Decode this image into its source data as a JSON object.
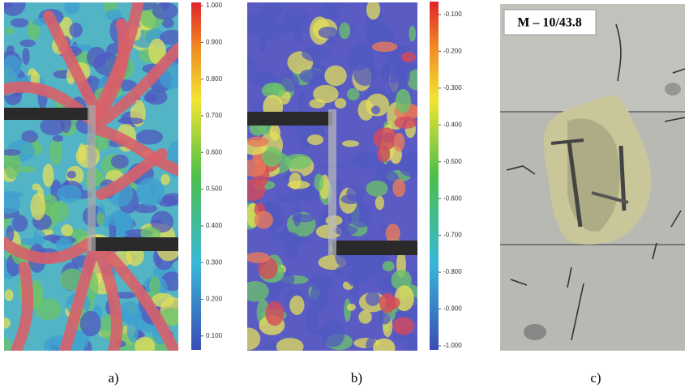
{
  "figure": {
    "panels": [
      {
        "caption": "a)",
        "colorbar": {
          "lim": [
            0.062,
            1.009
          ],
          "ticks": [
            {
              "value": 1,
              "label": "1.000"
            },
            {
              "value": 0.9,
              "label": "0.900"
            },
            {
              "value": 0.8,
              "label": "0.800"
            },
            {
              "value": 0.7,
              "label": "0.700"
            },
            {
              "value": 0.6,
              "label": "0.600"
            },
            {
              "value": 0.5,
              "label": "0.500"
            },
            {
              "value": 0.4,
              "label": "0.400"
            },
            {
              "value": 0.3,
              "label": "0.300"
            },
            {
              "value": 0.2,
              "label": "0.200"
            },
            {
              "value": 0.1,
              "label": "0.100"
            }
          ]
        }
      },
      {
        "caption": "b)",
        "colorbar": {
          "lim": [
            -1.011,
            -0.065
          ],
          "ticks": [
            {
              "value": -0.1,
              "label": "-0.100"
            },
            {
              "value": -0.2,
              "label": "-0.200"
            },
            {
              "value": -0.3,
              "label": "-0.300"
            },
            {
              "value": -0.4,
              "label": "-0.400"
            },
            {
              "value": -0.5,
              "label": "-0.500"
            },
            {
              "value": -0.6,
              "label": "-0.600"
            },
            {
              "value": -0.7,
              "label": "-0.700"
            },
            {
              "value": -0.8,
              "label": "-0.800"
            },
            {
              "value": -0.9,
              "label": "-0.900"
            },
            {
              "value": -1,
              "label": "-1.000"
            }
          ]
        }
      },
      {
        "caption": "c)",
        "specimen_label": "M – 10/43.8"
      }
    ]
  }
}
